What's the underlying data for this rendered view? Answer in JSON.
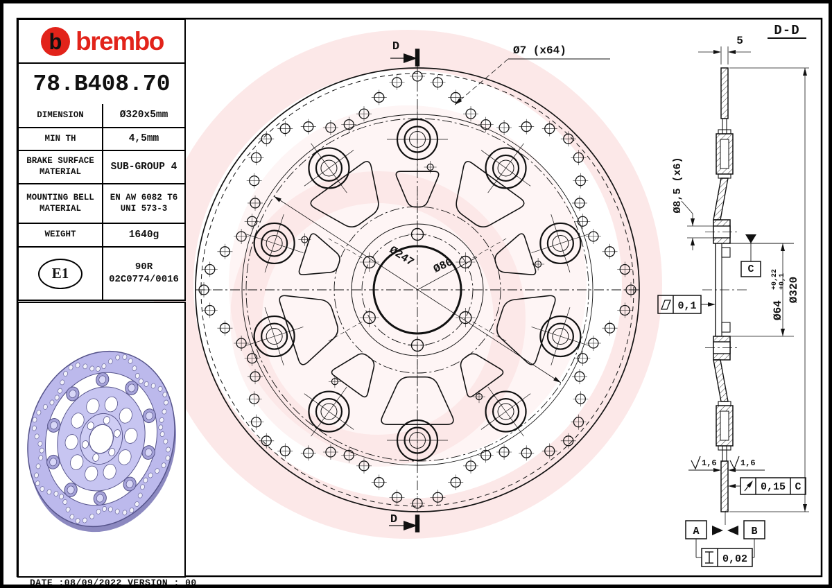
{
  "colors": {
    "brembo_red": "#e2231a",
    "watermark_pink": "rgba(228,32,26,0.10)",
    "photo_lilac": "#bcb9ec",
    "line": "#111111"
  },
  "titleblock": {
    "logo_letter": "b",
    "brand": "brembo",
    "part_number": "78.B408.70",
    "rows": [
      {
        "label_lines": [
          "DIMENSION"
        ],
        "value_lines": [
          "Ø320x5mm"
        ],
        "small": false
      },
      {
        "label_lines": [
          "MIN TH"
        ],
        "value_lines": [
          "4,5mm"
        ],
        "small": false
      },
      {
        "label_lines": [
          "BRAKE SURFACE",
          "MATERIAL"
        ],
        "value_lines": [
          "SUB-GROUP 4"
        ],
        "small": false
      },
      {
        "label_lines": [
          "MOUNTING BELL",
          "MATERIAL"
        ],
        "value_lines": [
          "EN AW 6082 T6",
          "UNI 573-3"
        ],
        "small": true
      },
      {
        "label_lines": [
          "WEIGHT"
        ],
        "value_lines": [
          "1640g"
        ],
        "small": false
      }
    ],
    "homologation": {
      "mark": "E1",
      "line1": "90R",
      "line2": "02C0774/0016"
    }
  },
  "front_view": {
    "section_marker": "D",
    "dim_holes": "Ø7 (x64)",
    "dim_band_inner": "Ø247",
    "dim_bolt_circle": "Ø80"
  },
  "section_view": {
    "title": "D-D",
    "dim_thickness": "5",
    "dim_bell_holes": "Ø8,5 (x6)",
    "dim_bore": "Ø64",
    "dim_bore_tol_upper": "+0,22",
    "dim_bore_tol_lower": "+0,1",
    "dim_outer": "Ø320",
    "flatness_value": "0,1",
    "roughness_left": "1,6",
    "roughness_right": "1,6",
    "runout_value": "0,15",
    "runout_datum": "C",
    "datum_c": "C",
    "datum_a": "A",
    "datum_b": "B",
    "parallelism_value": "0,02"
  },
  "footer": {
    "date_line": "DATE :08/09/2022 VERSION : 00"
  }
}
